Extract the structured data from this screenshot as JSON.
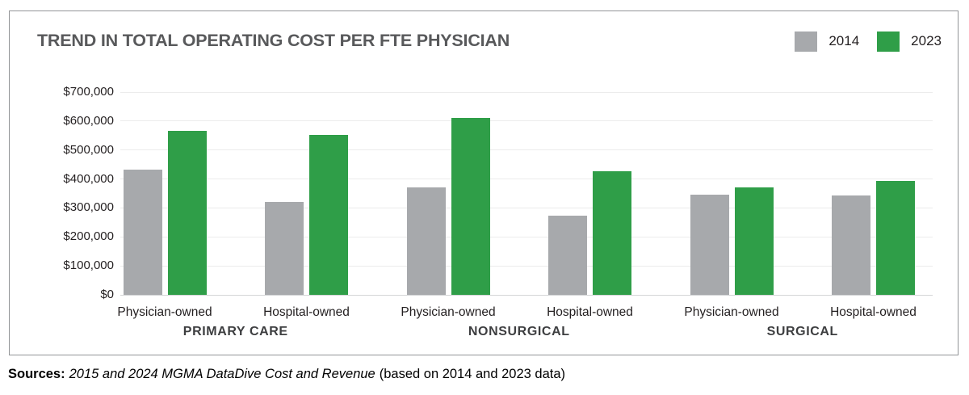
{
  "chart_data": {
    "type": "bar",
    "title": "TREND IN TOTAL OPERATING COST PER FTE PHYSICIAN",
    "groups": [
      "PRIMARY CARE",
      "NONSURGICAL",
      "SURGICAL"
    ],
    "categories": [
      "Physician-owned",
      "Hospital-owned",
      "Physician-owned",
      "Hospital-owned",
      "Physician-owned",
      "Hospital-owned"
    ],
    "series": [
      {
        "name": "2014",
        "color": "#a7a9ac",
        "values": [
          432000,
          320000,
          370000,
          272000,
          346000,
          343000
        ]
      },
      {
        "name": "2023",
        "color": "#2f9e48",
        "values": [
          565000,
          552000,
          610000,
          428000,
          371000,
          394000
        ]
      }
    ],
    "ylim": [
      0,
      700000
    ],
    "ytick_interval": 100000,
    "ytick_labels": [
      "$0",
      "$100,000",
      "$200,000",
      "$300,000",
      "$400,000",
      "$500,000",
      "$600,000",
      "$700,000"
    ],
    "grid": true,
    "legend_position": "top-right",
    "xlabel": "",
    "ylabel": ""
  },
  "source": {
    "prefix": "Sources:",
    "citation": "2015 and 2024 MGMA DataDive Cost and Revenue",
    "suffix": "(based on 2014 and 2023 data)"
  }
}
